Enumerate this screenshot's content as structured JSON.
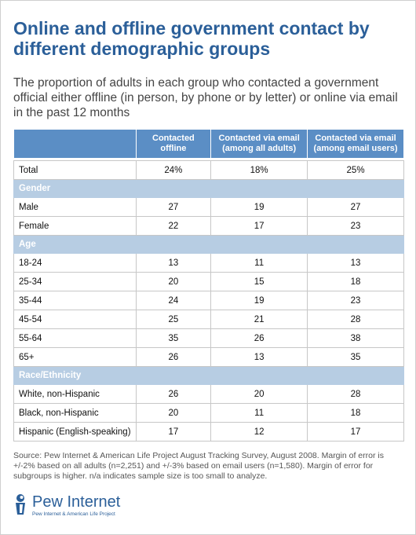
{
  "title": "Online and offline government contact by different demographic groups",
  "subtitle": "The proportion of adults in each group who contacted a government official either offline (in person, by phone or by letter) or online via email in the past 12 months",
  "table": {
    "headers": [
      "",
      "Contacted offline",
      "Contacted via email (among all adults)",
      "Contacted via email (among email users)"
    ],
    "total": {
      "label": "Total",
      "values": [
        "24%",
        "18%",
        "25%"
      ]
    },
    "sections": [
      {
        "name": "Gender",
        "rows": [
          {
            "label": "Male",
            "values": [
              "27",
              "19",
              "27"
            ]
          },
          {
            "label": "Female",
            "values": [
              "22",
              "17",
              "23"
            ]
          }
        ]
      },
      {
        "name": "Age",
        "rows": [
          {
            "label": "18-24",
            "values": [
              "13",
              "11",
              "13"
            ]
          },
          {
            "label": "25-34",
            "values": [
              "20",
              "15",
              "18"
            ]
          },
          {
            "label": "35-44",
            "values": [
              "24",
              "19",
              "23"
            ]
          },
          {
            "label": "45-54",
            "values": [
              "25",
              "21",
              "28"
            ]
          },
          {
            "label": "55-64",
            "values": [
              "35",
              "26",
              "38"
            ]
          },
          {
            "label": "65+",
            "values": [
              "26",
              "13",
              "35"
            ]
          }
        ]
      },
      {
        "name": "Race/Ethnicity",
        "rows": [
          {
            "label": "White, non-Hispanic",
            "values": [
              "26",
              "20",
              "28"
            ]
          },
          {
            "label": "Black, non-Hispanic",
            "values": [
              "20",
              "11",
              "18"
            ]
          },
          {
            "label": "Hispanic (English-speaking)",
            "values": [
              "17",
              "12",
              "17"
            ]
          }
        ]
      }
    ]
  },
  "source": "Source: Pew Internet & American Life Project August Tracking Survey, August 2008. Margin of error is +/-2% based on all adults (n=2,251) and +/-3% based on email users (n=1,580). Margin of error for subgroups is higher. n/a indicates sample size is too small to analyze.",
  "logo": {
    "name": "Pew Internet",
    "tagline": "Pew Internet & American Life Project"
  },
  "colors": {
    "title": "#2b5f99",
    "header_bg": "#5b8ec5",
    "section_bg": "#b7cde3"
  }
}
